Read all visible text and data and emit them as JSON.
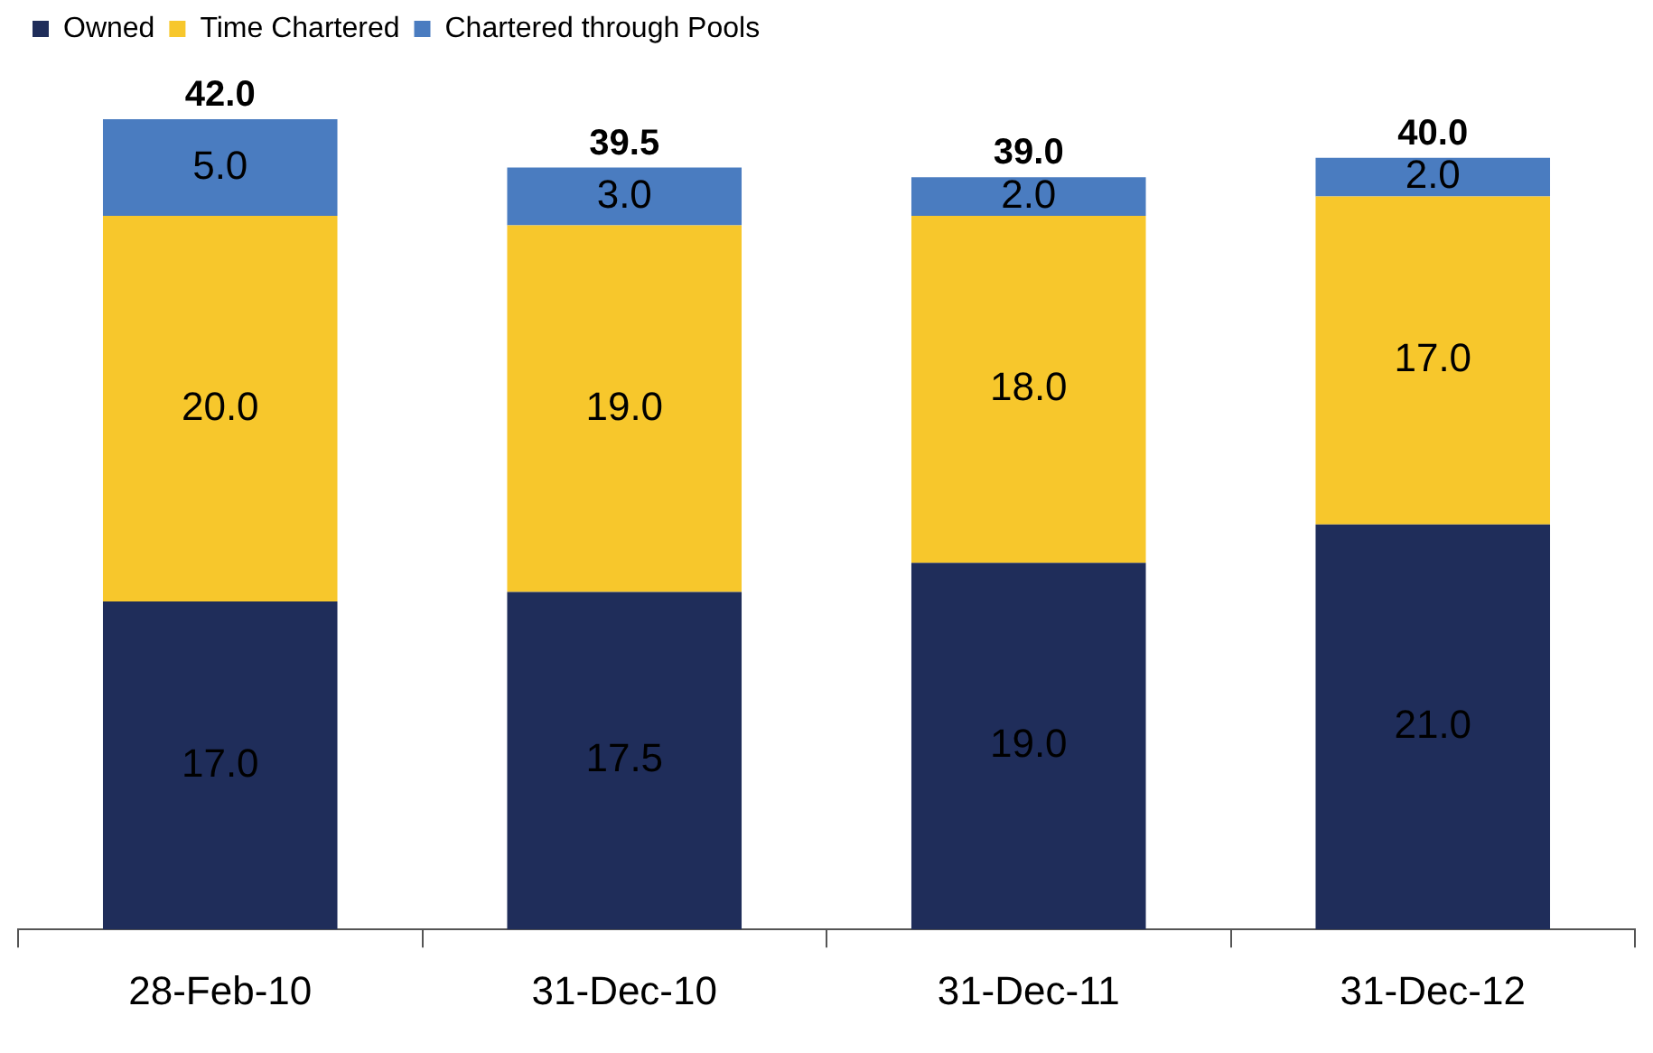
{
  "chart_data": {
    "type": "bar",
    "stacked": true,
    "categories": [
      "28-Feb-10",
      "31-Dec-10",
      "31-Dec-11",
      "31-Dec-12"
    ],
    "series": [
      {
        "name": "Owned",
        "color": "#1f2d5a",
        "values": [
          17.0,
          17.5,
          19.0,
          21.0
        ],
        "value_labels": [
          "17.0",
          "17.5",
          "19.0",
          "21.0"
        ]
      },
      {
        "name": "Time Chartered",
        "color": "#f7c72c",
        "values": [
          20.0,
          19.0,
          18.0,
          17.0
        ],
        "value_labels": [
          "20.0",
          "19.0",
          "18.0",
          "17.0"
        ]
      },
      {
        "name": "Chartered through Pools",
        "color": "#4a7cc0",
        "values": [
          5.0,
          3.0,
          2.0,
          2.0
        ],
        "value_labels": [
          "5.0",
          "3.0",
          "2.0",
          "2.0"
        ]
      }
    ],
    "totals": [
      "42.0",
      "39.5",
      "39.0",
      "40.0"
    ],
    "legend": "top left",
    "grid": false
  }
}
